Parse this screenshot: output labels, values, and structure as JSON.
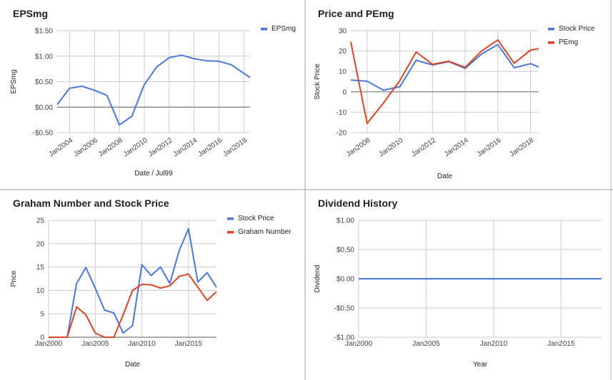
{
  "chart_data": [
    {
      "type": "line",
      "title": "EPSmg",
      "xlabel": "Date / Jul99",
      "ylabel": "EPSmg",
      "x": [
        2003,
        2004,
        2005,
        2006,
        2007,
        2008,
        2009,
        2010,
        2011,
        2012,
        2013,
        2014,
        2015,
        2016,
        2017,
        2018.5
      ],
      "ylim": [
        -0.5,
        1.5
      ],
      "xlim": [
        2003,
        2018.5
      ],
      "yticks": [
        -0.5,
        0,
        0.5,
        1.0,
        1.5
      ],
      "ytick_labels": [
        "-$0.50",
        "$0.00",
        "$0.50",
        "$1.00",
        "$1.50"
      ],
      "xticks": [
        2004,
        2006,
        2008,
        2010,
        2012,
        2014,
        2016,
        2018
      ],
      "xtick_labels": [
        "Jan2004",
        "Jan2006",
        "Jan2008",
        "Jan2010",
        "Jan2012",
        "Jan2014",
        "Jan2016",
        "Jan2018"
      ],
      "grid": true,
      "legend": "top-right",
      "series": [
        {
          "name": "EPSmg",
          "color": "#4a78d9",
          "values": [
            0.05,
            0.37,
            0.41,
            0.33,
            0.23,
            -0.35,
            -0.18,
            0.44,
            0.79,
            0.97,
            1.02,
            0.95,
            0.91,
            0.9,
            0.83,
            0.58
          ]
        }
      ]
    },
    {
      "type": "line",
      "title": "Price and PEmg",
      "xlabel": "Date",
      "ylabel": "Stock Price",
      "x": [
        2007,
        2008,
        2009,
        2010,
        2011,
        2012,
        2013,
        2014,
        2015,
        2016,
        2017,
        2018,
        2018.5
      ],
      "ylim": [
        -20,
        30
      ],
      "xlim": [
        2007,
        2018.5
      ],
      "yticks": [
        -20,
        -10,
        0,
        10,
        20,
        30
      ],
      "ytick_labels": [
        "-20",
        "-10",
        "0",
        "10",
        "20",
        "30"
      ],
      "xticks": [
        2008,
        2010,
        2012,
        2014,
        2016,
        2018
      ],
      "xtick_labels": [
        "Jan2008",
        "Jan2010",
        "Jan2012",
        "Jan2014",
        "Jan2016",
        "Jan2018"
      ],
      "grid": true,
      "legend": "top-right",
      "series": [
        {
          "name": "Stock Price",
          "color": "#4a78d9",
          "values": [
            5.8,
            5.2,
            0.8,
            2.5,
            15.5,
            13.2,
            14.8,
            11.5,
            18.5,
            23.2,
            11.8,
            13.8,
            12.2
          ]
        },
        {
          "name": "PEmg",
          "color": "#db4426",
          "values": [
            24.5,
            -15.5,
            -5.5,
            5.5,
            19.5,
            13.5,
            15.0,
            12.0,
            20.0,
            25.5,
            14.0,
            20.5,
            21.2
          ]
        }
      ]
    },
    {
      "type": "line",
      "title": "Graham Number and Stock Price",
      "xlabel": "Date",
      "ylabel": "Price",
      "x": [
        2000,
        2001,
        2002,
        2003,
        2004,
        2005,
        2006,
        2007,
        2008,
        2009,
        2010,
        2011,
        2012,
        2013,
        2014,
        2015,
        2016,
        2017,
        2018
      ],
      "ylim": [
        0,
        25
      ],
      "xlim": [
        2000,
        2018
      ],
      "yticks": [
        0,
        5,
        10,
        15,
        20,
        25
      ],
      "ytick_labels": [
        "0",
        "5",
        "10",
        "15",
        "20",
        "25"
      ],
      "xticks": [
        2000,
        2005,
        2010,
        2015
      ],
      "xtick_labels": [
        "Jan2000",
        "Jan2005",
        "Jan2010",
        "Jan2015"
      ],
      "grid": true,
      "legend": "top-right",
      "series": [
        {
          "name": "Stock Price",
          "color": "#4a78d9",
          "values": [
            0,
            0,
            0,
            11.5,
            14.9,
            10.5,
            5.8,
            5.2,
            0.9,
            2.5,
            15.5,
            13.2,
            15.0,
            11.5,
            18.5,
            23.2,
            11.8,
            13.8,
            10.7
          ]
        },
        {
          "name": "Graham Number",
          "color": "#db4426",
          "values": [
            0,
            0,
            0,
            6.5,
            4.8,
            0.9,
            0,
            0,
            4.8,
            10.0,
            11.3,
            11.2,
            10.5,
            11.0,
            13.0,
            13.5,
            10.7,
            7.9,
            9.7
          ]
        }
      ]
    },
    {
      "type": "line",
      "title": "Dividend History",
      "xlabel": "Year",
      "ylabel": "Dividend",
      "x": [
        2000,
        2018
      ],
      "ylim": [
        -1,
        1
      ],
      "xlim": [
        2000,
        2018
      ],
      "yticks": [
        -1,
        -0.5,
        0,
        0.5,
        1
      ],
      "ytick_labels": [
        "-$1.00",
        "-$0.50",
        "$0.00",
        "$0.50",
        "$1.00"
      ],
      "xticks": [
        2000,
        2005,
        2010,
        2015
      ],
      "xtick_labels": [
        "Jan2000",
        "Jan2005",
        "Jan2010",
        "Jan2015"
      ],
      "grid": true,
      "legend": "none",
      "series": [
        {
          "color": "#4a78d9",
          "values": [
            0,
            0
          ]
        }
      ]
    }
  ]
}
